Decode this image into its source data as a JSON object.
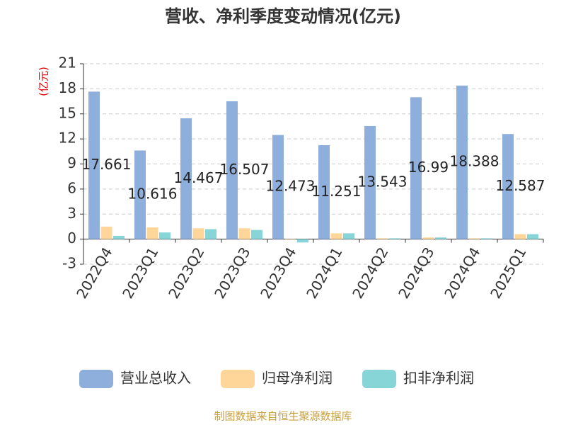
{
  "chart_data": {
    "type": "bar",
    "title": "营收、净利季度变动情况(亿元)",
    "y_label": "(亿元)",
    "source": "制图数据来自恒生聚源数据库",
    "categories": [
      "2022Q4",
      "2023Q1",
      "2023Q2",
      "2023Q3",
      "2023Q4",
      "2024Q1",
      "2024Q2",
      "2024Q3",
      "2024Q4",
      "2025Q1"
    ],
    "series": [
      {
        "name": "营业总收入",
        "color": "#8eaedc",
        "values": [
          17.661,
          10.616,
          14.467,
          16.507,
          12.473,
          11.251,
          13.543,
          16.99,
          18.388,
          12.587
        ]
      },
      {
        "name": "归母净利润",
        "color": "#ffd699",
        "values": [
          1.5,
          1.4,
          1.3,
          1.3,
          -0.05,
          0.7,
          0.1,
          0.2,
          0.1,
          0.6
        ]
      },
      {
        "name": "扣非净利润",
        "color": "#88d5d8",
        "values": [
          0.4,
          0.8,
          1.2,
          1.1,
          -0.4,
          0.7,
          0.1,
          0.2,
          0.1,
          0.6
        ]
      }
    ],
    "ylim": [
      -3,
      21
    ],
    "yticks": [
      -3,
      0,
      3,
      6,
      9,
      12,
      15,
      18,
      21
    ],
    "grid": true
  }
}
